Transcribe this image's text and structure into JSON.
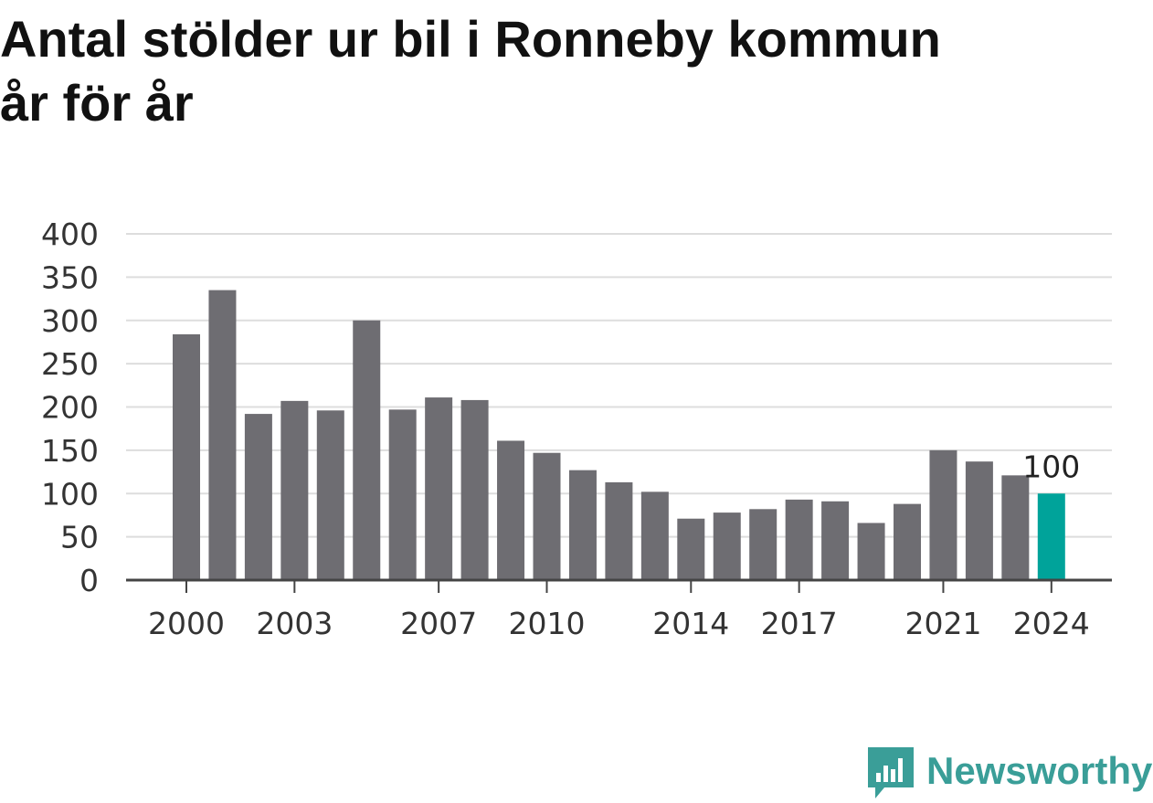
{
  "title_lines": [
    "Antal stölder ur bil i Ronneby kommun",
    "år för år"
  ],
  "brand": {
    "name": "Newsworthy",
    "icon": "newsworthy-logo-icon",
    "color": "#3a9e98"
  },
  "colors": {
    "bar": "#6e6d72",
    "highlight": "#00a39a",
    "grid": "#dddddd",
    "axis": "#444444"
  },
  "chart_data": {
    "type": "bar",
    "categories": [
      "2000",
      "2001",
      "2002",
      "2003",
      "2004",
      "2005",
      "2006",
      "2007",
      "2008",
      "2009",
      "2010",
      "2011",
      "2012",
      "2013",
      "2014",
      "2015",
      "2016",
      "2017",
      "2018",
      "2019",
      "2020",
      "2021",
      "2022",
      "2023",
      "2024"
    ],
    "values": [
      284,
      335,
      192,
      207,
      196,
      300,
      197,
      211,
      208,
      161,
      147,
      127,
      113,
      102,
      71,
      78,
      82,
      93,
      91,
      66,
      88,
      150,
      137,
      121,
      100
    ],
    "x_tick_labels": [
      "2000",
      "2003",
      "2007",
      "2010",
      "2014",
      "2017",
      "2021",
      "2024"
    ],
    "y_ticks": [
      0,
      50,
      100,
      150,
      200,
      250,
      300,
      350,
      400
    ],
    "ylim": [
      0,
      400
    ],
    "highlight": {
      "category": "2024",
      "label": "100"
    },
    "grid": true,
    "legend": false,
    "xlabel": "",
    "ylabel": ""
  }
}
